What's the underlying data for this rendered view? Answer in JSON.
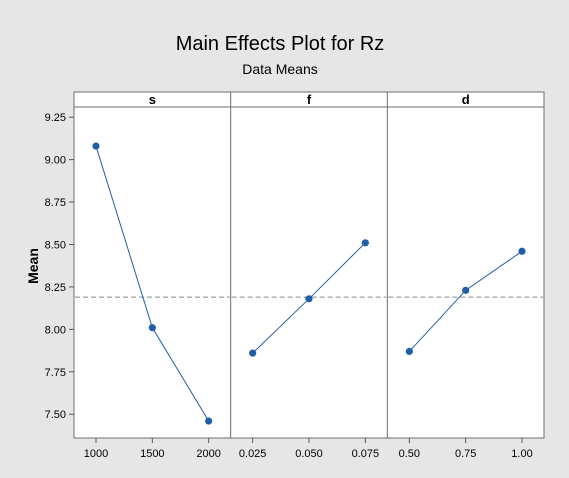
{
  "chart_data": {
    "type": "line",
    "title": "Main Effects Plot for Rz",
    "subtitle": "Data Means",
    "ylabel": "Mean",
    "ylim": [
      7.36,
      9.31
    ],
    "yticks": [
      "7.50",
      "7.75",
      "8.00",
      "8.25",
      "8.50",
      "8.75",
      "9.00",
      "9.25"
    ],
    "reference_line": 8.19,
    "panels": [
      {
        "name": "s",
        "x": [
          "1000",
          "1500",
          "2000"
        ],
        "values": [
          9.08,
          8.01,
          7.46
        ]
      },
      {
        "name": "f",
        "x": [
          "0.025",
          "0.050",
          "0.075"
        ],
        "values": [
          7.86,
          8.18,
          8.51
        ]
      },
      {
        "name": "d",
        "x": [
          "0.50",
          "0.75",
          "1.00"
        ],
        "values": [
          7.87,
          8.23,
          8.46
        ]
      }
    ],
    "line_color": "#1f5fa8",
    "reference_color": "#8a8a8a",
    "background_color": "#e6e6e6"
  }
}
